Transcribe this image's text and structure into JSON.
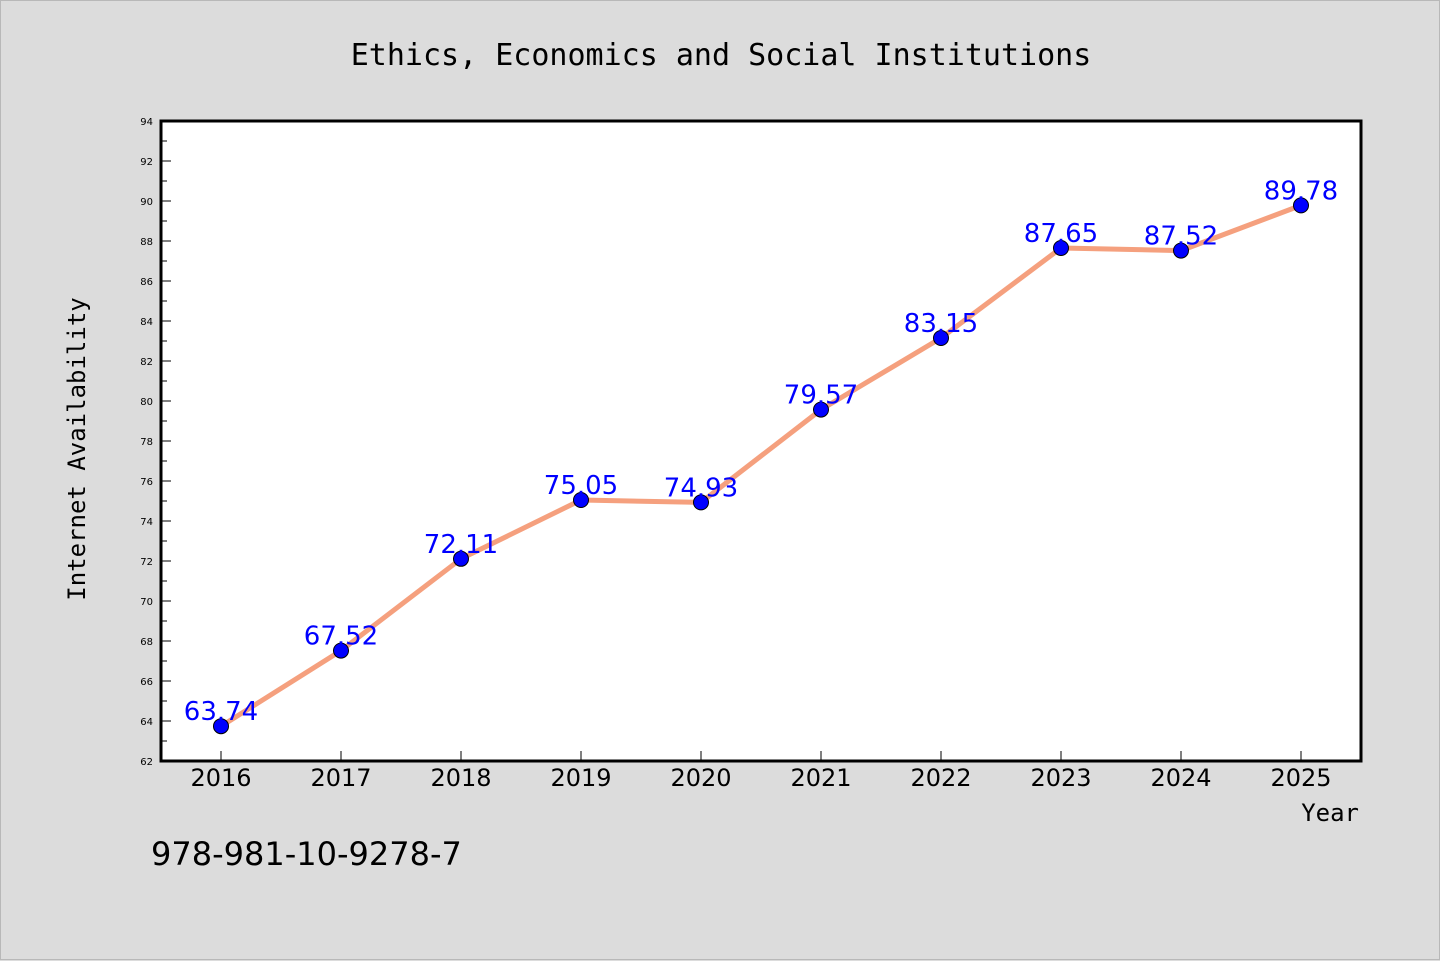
{
  "chart_data": {
    "type": "line",
    "title": "Ethics, Economics and Social Institutions",
    "xlabel": "Year",
    "ylabel": "Internet Availability",
    "categories": [
      "2016",
      "2017",
      "2018",
      "2019",
      "2020",
      "2021",
      "2022",
      "2023",
      "2024",
      "2025"
    ],
    "series": [
      {
        "values": [
          63.74,
          67.52,
          72.11,
          75.05,
          74.93,
          79.57,
          83.15,
          87.65,
          87.52,
          89.78
        ],
        "labels": [
          "63.74",
          "67.52",
          "72.11",
          "75.05",
          "74.93",
          "79.57",
          "83.15",
          "87.65",
          "87.52",
          "89.78"
        ],
        "line_color": "#f5a07e",
        "marker_color": "#0000ff"
      }
    ],
    "ylim": [
      62,
      94
    ],
    "yticks": [
      62,
      64,
      66,
      68,
      70,
      72,
      74,
      76,
      78,
      80,
      82,
      84,
      86,
      88,
      90,
      92,
      94
    ],
    "grid": false,
    "legend": "none"
  },
  "footer_text": "978-981-10-9278-7",
  "colors": {
    "background": "#dcdcdc",
    "plot_background": "#ffffff",
    "label_color": "#0000ff"
  }
}
